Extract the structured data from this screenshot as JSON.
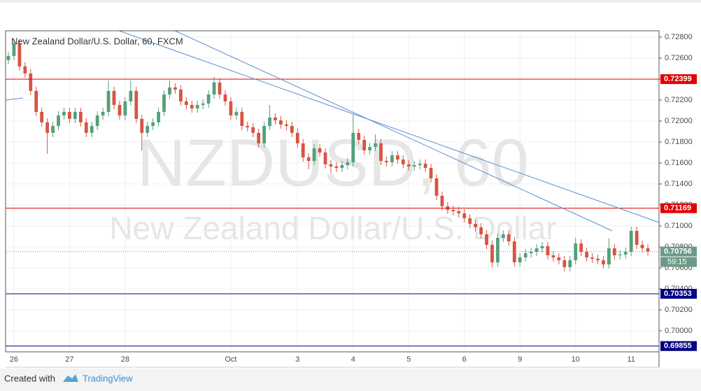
{
  "chart_data": {
    "type": "candlestick",
    "title": "New Zealand Dollar/U.S. Dollar, 60, FXCM",
    "watermark": "NZDUSD, 60",
    "watermark_subtitle": "New Zealand Dollar/U.S. Dollar",
    "categories": [
      null,
      "26",
      null,
      null,
      null,
      null,
      null,
      null,
      null,
      null,
      null,
      "27",
      null,
      null,
      null,
      null,
      null,
      null,
      null,
      null,
      null,
      "28",
      null,
      null,
      null,
      null,
      null,
      null,
      null,
      null,
      null,
      null,
      null,
      null,
      null,
      null,
      null,
      null,
      null,
      null,
      "Oct",
      null,
      null,
      null,
      null,
      null,
      null,
      null,
      null,
      null,
      null,
      null,
      "3",
      null,
      null,
      null,
      null,
      null,
      null,
      null,
      null,
      null,
      "4",
      null,
      null,
      null,
      null,
      null,
      null,
      null,
      null,
      null,
      "5",
      null,
      null,
      null,
      null,
      null,
      null,
      null,
      null,
      null,
      "6",
      null,
      null,
      null,
      null,
      null,
      null,
      null,
      null,
      null,
      "9",
      null,
      null,
      null,
      null,
      null,
      null,
      null,
      null,
      null,
      "10",
      null,
      null,
      null,
      null,
      null,
      null,
      null,
      null,
      null,
      "11",
      null,
      null,
      null
    ],
    "open": [
      0.7258,
      0.7262,
      0.7274,
      0.7252,
      0.72453,
      0.72287,
      0.72087,
      0.71987,
      0.71887,
      0.71953,
      0.72053,
      0.72087,
      0.7202,
      0.72087,
      0.71987,
      0.71887,
      0.71953,
      0.72053,
      0.72087,
      0.72287,
      0.72153,
      0.72053,
      0.72187,
      0.72287,
      0.7202,
      0.71887,
      0.71953,
      0.71987,
      0.72087,
      0.72253,
      0.7232,
      0.723,
      0.72187,
      0.72153,
      0.7212,
      0.72153,
      0.72167,
      0.72253,
      0.72367,
      0.72253,
      0.72187,
      0.72053,
      0.72087,
      0.71953,
      0.7194,
      0.71887,
      0.71787,
      0.71953,
      0.72033,
      0.72007,
      0.71967,
      0.71953,
      0.71887,
      0.71787,
      0.71653,
      0.7162,
      0.7174,
      0.717,
      0.71587,
      0.71567,
      0.71553,
      0.7158,
      0.71607,
      0.71887,
      0.7182,
      0.7172,
      0.71753,
      0.71787,
      0.7162,
      0.71607,
      0.71673,
      0.71633,
      0.71587,
      0.71567,
      0.7158,
      0.71593,
      0.71553,
      0.71453,
      0.71287,
      0.71187,
      0.71153,
      0.7114,
      0.7112,
      0.71073,
      0.7102,
      0.70987,
      0.7092,
      0.7082,
      0.70653,
      0.70887,
      0.7092,
      0.70853,
      0.70653,
      0.707,
      0.7074,
      0.70753,
      0.70787,
      0.70807,
      0.7072,
      0.707,
      0.70673,
      0.70607,
      0.70673,
      0.70833,
      0.70753,
      0.707,
      0.70687,
      0.70673,
      0.70633,
      0.70787,
      0.7072,
      0.70727,
      0.70753,
      0.70953,
      0.7082,
      0.70787
    ],
    "high": [
      0.7266,
      0.7278,
      0.7278,
      0.7256,
      0.72493,
      0.72327,
      0.72127,
      0.72027,
      0.71993,
      0.72093,
      0.72127,
      0.72127,
      0.72127,
      0.72127,
      0.72027,
      0.71993,
      0.72093,
      0.72127,
      0.72387,
      0.72327,
      0.72193,
      0.72227,
      0.72387,
      0.72327,
      0.7206,
      0.71993,
      0.72027,
      0.72127,
      0.72293,
      0.72387,
      0.7236,
      0.7234,
      0.72227,
      0.72193,
      0.72193,
      0.72207,
      0.72293,
      0.7242,
      0.72407,
      0.72293,
      0.72227,
      0.72127,
      0.72127,
      0.71993,
      0.7198,
      0.71927,
      0.71993,
      0.72153,
      0.72073,
      0.72047,
      0.72007,
      0.71993,
      0.71927,
      0.71827,
      0.71693,
      0.7178,
      0.7178,
      0.7174,
      0.71627,
      0.71607,
      0.7162,
      0.71647,
      0.7206,
      0.71927,
      0.7186,
      0.71793,
      0.71873,
      0.71827,
      0.7166,
      0.71713,
      0.71713,
      0.71673,
      0.71627,
      0.7162,
      0.71633,
      0.71633,
      0.71593,
      0.71493,
      0.71327,
      0.71227,
      0.71193,
      0.7118,
      0.7116,
      0.71113,
      0.7106,
      0.71027,
      0.7096,
      0.7086,
      0.70927,
      0.7096,
      0.7096,
      0.70893,
      0.7074,
      0.7078,
      0.70793,
      0.70827,
      0.70847,
      0.70847,
      0.7076,
      0.7074,
      0.70713,
      0.70713,
      0.70887,
      0.70873,
      0.70793,
      0.7074,
      0.70727,
      0.70713,
      0.7088,
      0.70827,
      0.70767,
      0.70793,
      0.70993,
      0.70993,
      0.7086,
      0.70827
    ],
    "low": [
      0.7254,
      0.7258,
      0.7248,
      0.72413,
      0.72247,
      0.72047,
      0.71947,
      0.71687,
      0.71847,
      0.71913,
      0.72013,
      0.7198,
      0.7198,
      0.71947,
      0.71847,
      0.71847,
      0.71913,
      0.72013,
      0.72047,
      0.72113,
      0.72013,
      0.72013,
      0.72147,
      0.7198,
      0.7172,
      0.71847,
      0.71913,
      0.71947,
      0.72047,
      0.72213,
      0.7226,
      0.72147,
      0.72113,
      0.7208,
      0.7208,
      0.72113,
      0.72127,
      0.72213,
      0.72213,
      0.72147,
      0.72013,
      0.72013,
      0.71913,
      0.719,
      0.71847,
      0.71747,
      0.71747,
      0.71913,
      0.71967,
      0.71927,
      0.71913,
      0.71847,
      0.71747,
      0.71613,
      0.7154,
      0.7158,
      0.7166,
      0.71547,
      0.715,
      0.71513,
      0.71513,
      0.7154,
      0.71567,
      0.7178,
      0.7168,
      0.7168,
      0.71713,
      0.7158,
      0.71567,
      0.71567,
      0.71593,
      0.71547,
      0.71527,
      0.71527,
      0.7154,
      0.71513,
      0.71413,
      0.71247,
      0.71147,
      0.71113,
      0.711,
      0.7108,
      0.71033,
      0.7098,
      0.70947,
      0.7088,
      0.7078,
      0.70607,
      0.70613,
      0.70847,
      0.70813,
      0.70613,
      0.70613,
      0.7066,
      0.707,
      0.70713,
      0.70747,
      0.7068,
      0.7066,
      0.70633,
      0.70567,
      0.70567,
      0.70633,
      0.70713,
      0.7066,
      0.70647,
      0.70633,
      0.70593,
      0.70593,
      0.7068,
      0.7068,
      0.70687,
      0.70713,
      0.7078,
      0.70747,
      0.70716
    ],
    "close": [
      0.7262,
      0.7274,
      0.7252,
      0.72453,
      0.72287,
      0.72087,
      0.71987,
      0.71887,
      0.71953,
      0.72053,
      0.72087,
      0.7202,
      0.72087,
      0.71987,
      0.71887,
      0.71953,
      0.72053,
      0.72087,
      0.72287,
      0.72153,
      0.72053,
      0.72187,
      0.72287,
      0.7202,
      0.71887,
      0.71953,
      0.71987,
      0.72087,
      0.72253,
      0.7232,
      0.723,
      0.72187,
      0.72153,
      0.7212,
      0.72153,
      0.72167,
      0.72253,
      0.72367,
      0.72253,
      0.72187,
      0.72053,
      0.72087,
      0.71953,
      0.7194,
      0.71887,
      0.71787,
      0.71953,
      0.72033,
      0.72007,
      0.71967,
      0.71953,
      0.71887,
      0.71787,
      0.71653,
      0.7162,
      0.7174,
      0.717,
      0.71587,
      0.71567,
      0.71553,
      0.7158,
      0.71607,
      0.71887,
      0.7182,
      0.7172,
      0.71753,
      0.71787,
      0.7162,
      0.71607,
      0.71673,
      0.71633,
      0.71587,
      0.71567,
      0.7158,
      0.71593,
      0.71553,
      0.71453,
      0.71287,
      0.71187,
      0.71153,
      0.7114,
      0.7112,
      0.71073,
      0.7102,
      0.70987,
      0.7092,
      0.7082,
      0.70653,
      0.70887,
      0.7092,
      0.70853,
      0.70653,
      0.707,
      0.7074,
      0.70753,
      0.70787,
      0.70807,
      0.7072,
      0.707,
      0.70673,
      0.70607,
      0.70673,
      0.70833,
      0.70753,
      0.707,
      0.70687,
      0.70673,
      0.70633,
      0.70787,
      0.7072,
      0.70727,
      0.70753,
      0.70953,
      0.7082,
      0.70787,
      0.70756
    ],
    "up_color": "#53a07a",
    "down_color": "#d75442",
    "ylim": [
      0.698,
      0.7286
    ],
    "yticks": [
      {
        "value": 0.728,
        "label": "0.72800"
      },
      {
        "value": 0.726,
        "label": "0.72600"
      },
      {
        "value": 0.724,
        "label": "0.72400"
      },
      {
        "value": 0.722,
        "label": "0.72200"
      },
      {
        "value": 0.72,
        "label": "0.72000"
      },
      {
        "value": 0.718,
        "label": "0.71800"
      },
      {
        "value": 0.716,
        "label": "0.71600"
      },
      {
        "value": 0.714,
        "label": "0.71400"
      },
      {
        "value": 0.712,
        "label": "0.71200"
      },
      {
        "value": 0.71,
        "label": "0.71000"
      },
      {
        "value": 0.708,
        "label": "0.70800"
      },
      {
        "value": 0.706,
        "label": "0.70600"
      },
      {
        "value": 0.704,
        "label": "0.70400"
      },
      {
        "value": 0.702,
        "label": "0.70200"
      },
      {
        "value": 0.7,
        "label": "0.70000"
      }
    ],
    "grid": true,
    "levels": [
      {
        "value": 0.72399,
        "color": "#e00000"
      },
      {
        "value": 0.71169,
        "color": "#e00000"
      },
      {
        "value": 0.70353,
        "color": "#000080"
      },
      {
        "value": 0.69855,
        "color": "#000080"
      }
    ],
    "last_price": 0.70756,
    "last_price_color": "#6c9a86",
    "countdown": "59:15",
    "footer": {
      "text": "Created with",
      "brand": "TradingView"
    }
  }
}
